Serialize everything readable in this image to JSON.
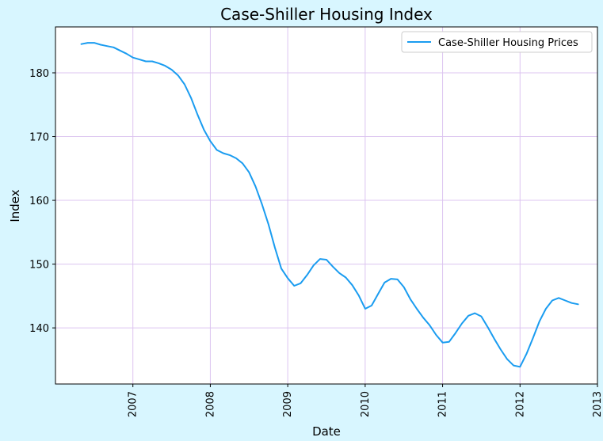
{
  "chart_data": {
    "type": "line",
    "title": "Case-Shiller Housing Index",
    "xlabel": "Date",
    "ylabel": "Index",
    "xlim": [
      "2006-01",
      "2013-01"
    ],
    "ylim": [
      131.2,
      187.2
    ],
    "grid": true,
    "legend": "top-right",
    "x_ticks": [
      "2007",
      "2008",
      "2009",
      "2010",
      "2011",
      "2012",
      "2013"
    ],
    "y_ticks": [
      140,
      150,
      160,
      170,
      180
    ],
    "colors": {
      "line": "#1a9cf0",
      "grid": "#dcc4f0",
      "background": "#d8f6ff",
      "plot_background": "#ffffff"
    },
    "series": [
      {
        "name": "Case-Shiller Housing Prices",
        "x": [
          "2006-05",
          "2006-06",
          "2006-07",
          "2006-08",
          "2006-09",
          "2006-10",
          "2006-11",
          "2006-12",
          "2007-01",
          "2007-02",
          "2007-03",
          "2007-04",
          "2007-05",
          "2007-06",
          "2007-07",
          "2007-08",
          "2007-09",
          "2007-10",
          "2007-11",
          "2007-12",
          "2008-01",
          "2008-02",
          "2008-03",
          "2008-04",
          "2008-05",
          "2008-06",
          "2008-07",
          "2008-08",
          "2008-09",
          "2008-10",
          "2008-11",
          "2008-12",
          "2009-01",
          "2009-02",
          "2009-03",
          "2009-04",
          "2009-05",
          "2009-06",
          "2009-07",
          "2009-08",
          "2009-09",
          "2009-10",
          "2009-11",
          "2009-12",
          "2010-01",
          "2010-02",
          "2010-03",
          "2010-04",
          "2010-05",
          "2010-06",
          "2010-07",
          "2010-08",
          "2010-09",
          "2010-10",
          "2010-11",
          "2010-12",
          "2011-01",
          "2011-02",
          "2011-03",
          "2011-04",
          "2011-05",
          "2011-06",
          "2011-07",
          "2011-08",
          "2011-09",
          "2011-10",
          "2011-11",
          "2011-12",
          "2012-01",
          "2012-02",
          "2012-03",
          "2012-04",
          "2012-05",
          "2012-06",
          "2012-07",
          "2012-08",
          "2012-09",
          "2012-10"
        ],
        "values": [
          184.5,
          184.7,
          184.7,
          184.4,
          184.2,
          184.0,
          183.5,
          183.0,
          182.4,
          182.1,
          181.8,
          181.8,
          181.5,
          181.1,
          180.5,
          179.6,
          178.2,
          176.1,
          173.5,
          171.1,
          169.3,
          167.9,
          167.4,
          167.1,
          166.6,
          165.8,
          164.4,
          162.2,
          159.4,
          156.3,
          152.6,
          149.3,
          147.8,
          146.6,
          147.0,
          148.3,
          149.8,
          150.8,
          150.7,
          149.6,
          148.6,
          147.9,
          146.7,
          145.1,
          143.0,
          143.5,
          145.3,
          147.1,
          147.7,
          147.6,
          146.4,
          144.5,
          143.0,
          141.6,
          140.4,
          138.9,
          137.7,
          137.8,
          139.2,
          140.7,
          141.9,
          142.3,
          141.8,
          140.1,
          138.3,
          136.6,
          135.1,
          134.1,
          133.9,
          135.9,
          138.4,
          141.0,
          143.0,
          144.3,
          144.7,
          144.3,
          143.9,
          143.7
        ]
      }
    ]
  }
}
